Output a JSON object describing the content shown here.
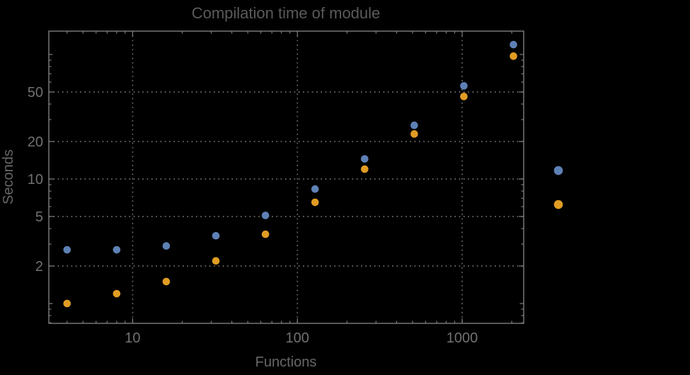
{
  "title": "Compilation time of module",
  "xlabel": "Functions",
  "ylabel": "Seconds",
  "colors": {
    "background": "#000000",
    "frame": "#7d7d7d",
    "grid": "#6b6b6b",
    "title_text": "#5a5a5a",
    "tick_text": "#717171",
    "axis_label_text": "#676767",
    "series_blue": "#5e81b5",
    "series_orange": "#e19c24"
  },
  "chart_data": {
    "type": "scatter",
    "x_scale": "log",
    "y_scale": "log",
    "title": "Compilation time of module",
    "xlabel": "Functions",
    "ylabel": "Seconds",
    "grid": true,
    "x": [
      4,
      8,
      16,
      32,
      64,
      128,
      256,
      512,
      1024,
      2048
    ],
    "series": [
      {
        "name": "series-blue",
        "color": "#5e81b5",
        "values": [
          2.7,
          2.7,
          2.9,
          3.5,
          5.1,
          8.3,
          14.5,
          27,
          56,
          120
        ]
      },
      {
        "name": "series-orange",
        "color": "#e19c24",
        "values": [
          1.0,
          1.2,
          1.5,
          2.2,
          3.6,
          6.5,
          12,
          23,
          46,
          97
        ]
      }
    ],
    "x_ticks": [
      10,
      100,
      1000
    ],
    "x_tick_labels": [
      "10",
      "100",
      "1000"
    ],
    "y_ticks": [
      2,
      5,
      10,
      20,
      50
    ],
    "y_tick_labels": [
      "2",
      "5",
      "10",
      "20",
      "50"
    ],
    "y_unlabeled_ticks": [
      1,
      100
    ],
    "x_range": [
      3.1,
      2363
    ],
    "y_range": [
      0.693,
      154
    ],
    "legend_position": "right-outside",
    "legend": [
      {
        "series": "series-blue",
        "color": "#5e81b5",
        "label": ""
      },
      {
        "series": "series-orange",
        "color": "#e19c24",
        "label": ""
      }
    ]
  }
}
